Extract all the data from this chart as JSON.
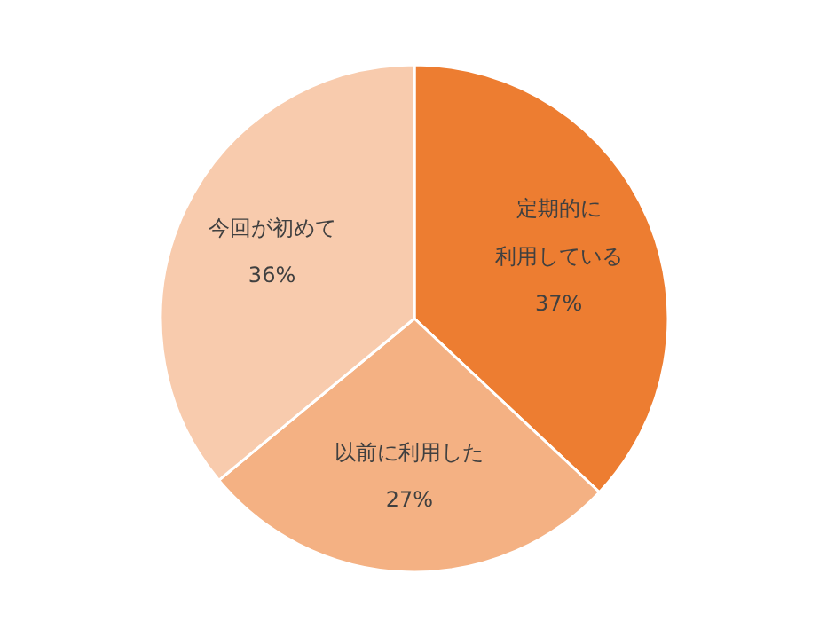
{
  "chart_data": {
    "type": "pie",
    "categories": [
      "定期的に利用している",
      "以前に利用した",
      "今回が初めて"
    ],
    "values": [
      37,
      27,
      36
    ],
    "colors": [
      "#ed7d31",
      "#f4b183",
      "#f8cbad"
    ],
    "value_labels": [
      "37%",
      "27%",
      "36%"
    ]
  }
}
